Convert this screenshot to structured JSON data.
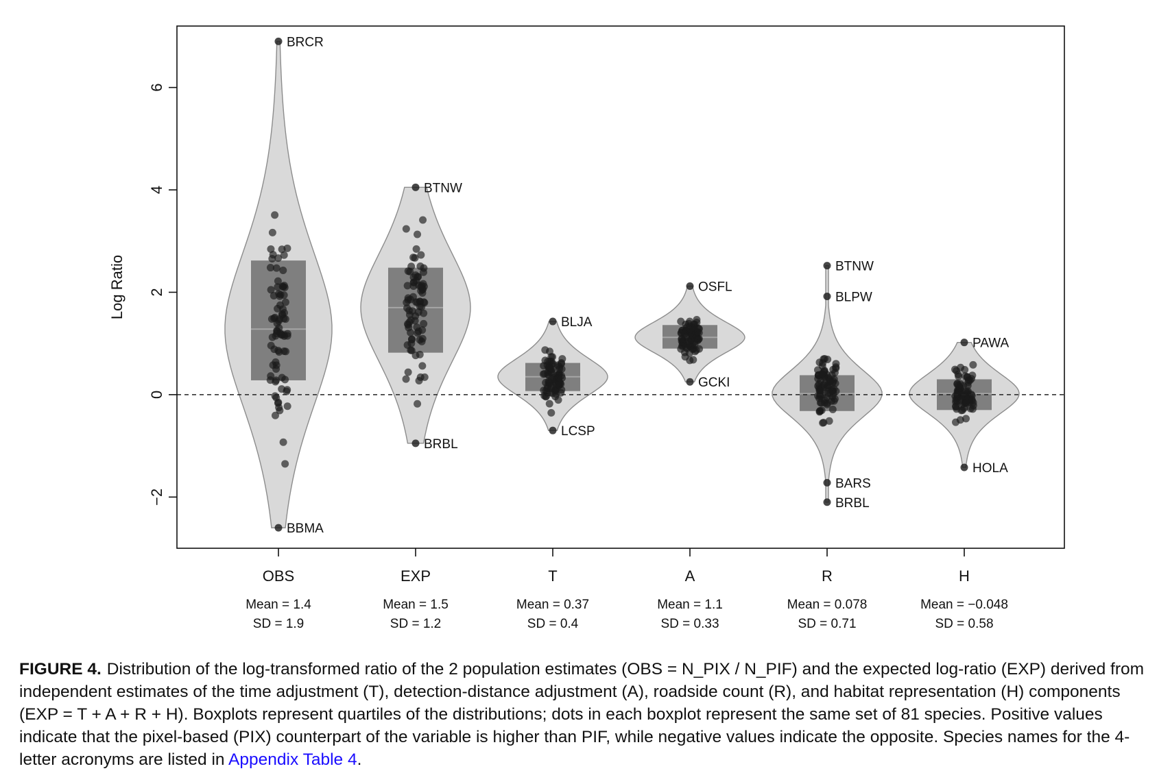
{
  "chart_data": {
    "type": "violin",
    "ylabel": "Log Ratio",
    "ylim": [
      -3.0,
      7.2
    ],
    "yticks": [
      -2,
      0,
      2,
      4,
      6
    ],
    "ytick_labels": [
      "−2",
      "0",
      "2",
      "4",
      "6"
    ],
    "reference_line": 0,
    "categories": [
      "OBS",
      "EXP",
      "T",
      "A",
      "R",
      "H"
    ],
    "groups": [
      {
        "name": "OBS",
        "mean_label": "Mean = 1.4",
        "sd_label": "SD = 1.9",
        "min": -2.6,
        "max": 6.9,
        "q1": 0.28,
        "median": 1.28,
        "q3": 2.62,
        "outliers": [
          {
            "label": "BRCR",
            "value": 6.9
          },
          {
            "label": "BBMA",
            "value": -2.6
          }
        ]
      },
      {
        "name": "EXP",
        "mean_label": "Mean = 1.5",
        "sd_label": "SD = 1.2",
        "min": -0.95,
        "max": 4.05,
        "q1": 0.82,
        "median": 1.7,
        "q3": 2.48,
        "outliers": [
          {
            "label": "BTNW",
            "value": 4.05
          },
          {
            "label": "BRBL",
            "value": -0.95
          }
        ]
      },
      {
        "name": "T",
        "mean_label": "Mean = 0.37",
        "sd_label": "SD = 0.4",
        "min": -0.7,
        "max": 1.43,
        "q1": 0.07,
        "median": 0.35,
        "q3": 0.62,
        "outliers": [
          {
            "label": "BLJA",
            "value": 1.43
          },
          {
            "label": "LCSP",
            "value": -0.7
          }
        ]
      },
      {
        "name": "A",
        "mean_label": "Mean = 1.1",
        "sd_label": "SD = 0.33",
        "min": 0.25,
        "max": 2.12,
        "q1": 0.9,
        "median": 1.12,
        "q3": 1.36,
        "outliers": [
          {
            "label": "OSFL",
            "value": 2.12
          },
          {
            "label": "GCKI",
            "value": 0.25
          }
        ]
      },
      {
        "name": "R",
        "mean_label": "Mean = 0.078",
        "sd_label": "SD = 0.71",
        "min": -2.1,
        "max": 2.52,
        "q1": -0.32,
        "median": 0.02,
        "q3": 0.38,
        "outliers": [
          {
            "label": "BTNW",
            "value": 2.52
          },
          {
            "label": "BLPW",
            "value": 1.92
          },
          {
            "label": "BARS",
            "value": -1.72
          },
          {
            "label": "BRBL",
            "value": -2.1
          }
        ]
      },
      {
        "name": "H",
        "mean_label": "Mean = −0.048",
        "sd_label": "SD = 0.58",
        "min": -1.42,
        "max": 1.02,
        "q1": -0.3,
        "median": 0.02,
        "q3": 0.3,
        "outliers": [
          {
            "label": "PAWA",
            "value": 1.02
          },
          {
            "label": "HOLA",
            "value": -1.42
          }
        ]
      }
    ]
  },
  "caption": {
    "figure_label": "FIGURE 4.",
    "text_before_link": "Distribution of the log-transformed ratio of the 2 population estimates (OBS = N_PIX / N_PIF) and the expected log-ratio (EXP) derived from independent estimates of the time adjustment (T), detection-distance adjustment (A), roadside count (R), and habitat representation (H) components (EXP = T + A + R + H). Boxplots represent quartiles of the distributions; dots in each boxplot represent the same set of 81 species. Positive values indicate that the pixel-based (PIX) counterpart of the variable is higher than PIF, while negative values indicate the opposite. Species names for the 4-letter acronyms are listed in",
    "link_text": "Appendix Table 4",
    "text_after_link": "."
  },
  "colors": {
    "violin_fill": "#d9d9d9",
    "violin_stroke": "#8c8c8c",
    "box_fill": "#7f7f7f",
    "median_line": "#a6a6a6",
    "points": "#1a1a1a",
    "link": "#1a0dff"
  }
}
